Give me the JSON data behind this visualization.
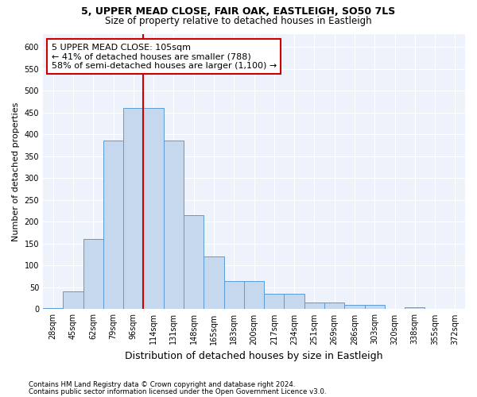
{
  "title1": "5, UPPER MEAD CLOSE, FAIR OAK, EASTLEIGH, SO50 7LS",
  "title2": "Size of property relative to detached houses in Eastleigh",
  "xlabel": "Distribution of detached houses by size in Eastleigh",
  "ylabel": "Number of detached properties",
  "categories": [
    "28sqm",
    "45sqm",
    "62sqm",
    "79sqm",
    "96sqm",
    "114sqm",
    "131sqm",
    "148sqm",
    "165sqm",
    "183sqm",
    "200sqm",
    "217sqm",
    "234sqm",
    "251sqm",
    "269sqm",
    "286sqm",
    "303sqm",
    "320sqm",
    "338sqm",
    "355sqm",
    "372sqm"
  ],
  "values": [
    2,
    40,
    160,
    385,
    460,
    460,
    385,
    215,
    120,
    65,
    65,
    35,
    35,
    15,
    15,
    10,
    10,
    1,
    5,
    1,
    1
  ],
  "bar_color": "#c5d8ed",
  "bar_edgecolor": "#5b9bd5",
  "vline_x": 5.0,
  "vline_color": "#cc0000",
  "annotation_text": "5 UPPER MEAD CLOSE: 105sqm\n← 41% of detached houses are smaller (788)\n58% of semi-detached houses are larger (1,100) →",
  "annotation_box_facecolor": "#ffffff",
  "annotation_box_edgecolor": "#cc0000",
  "footnote1": "Contains HM Land Registry data © Crown copyright and database right 2024.",
  "footnote2": "Contains public sector information licensed under the Open Government Licence v3.0.",
  "ylim": [
    0,
    630
  ],
  "yticks": [
    0,
    50,
    100,
    150,
    200,
    250,
    300,
    350,
    400,
    450,
    500,
    550,
    600
  ],
  "fig_facecolor": "#ffffff",
  "plot_facecolor": "#edf2fb",
  "grid_color": "#ffffff",
  "title1_fontsize": 9,
  "title2_fontsize": 8.5,
  "ylabel_fontsize": 8,
  "xlabel_fontsize": 9,
  "tick_fontsize": 7,
  "annot_fontsize": 8
}
